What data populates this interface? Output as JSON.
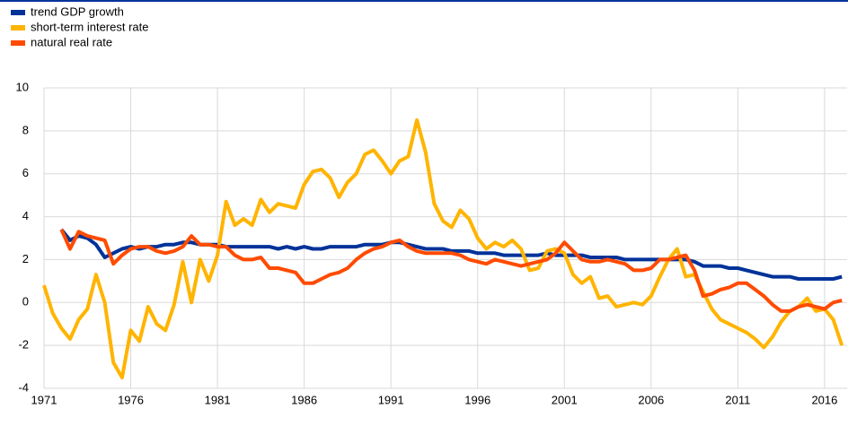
{
  "chart_data": {
    "type": "line",
    "x": [
      1971,
      1971.5,
      1972,
      1972.5,
      1973,
      1973.5,
      1974,
      1974.5,
      1975,
      1975.5,
      1976,
      1976.5,
      1977,
      1977.5,
      1978,
      1978.5,
      1979,
      1979.5,
      1980,
      1980.5,
      1981,
      1981.5,
      1982,
      1982.5,
      1983,
      1983.5,
      1984,
      1984.5,
      1985,
      1985.5,
      1986,
      1986.5,
      1987,
      1987.5,
      1988,
      1988.5,
      1989,
      1989.5,
      1990,
      1990.5,
      1991,
      1991.5,
      1992,
      1992.5,
      1993,
      1993.5,
      1994,
      1994.5,
      1995,
      1995.5,
      1996,
      1996.5,
      1997,
      1997.5,
      1998,
      1998.5,
      1999,
      1999.5,
      2000,
      2000.5,
      2001,
      2001.5,
      2002,
      2002.5,
      2003,
      2003.5,
      2004,
      2004.5,
      2005,
      2005.5,
      2006,
      2006.5,
      2007,
      2007.5,
      2008,
      2008.5,
      2009,
      2009.5,
      2010,
      2010.5,
      2011,
      2011.5,
      2012,
      2012.5,
      2013,
      2013.5,
      2014,
      2014.5,
      2015,
      2015.5,
      2016,
      2016.5,
      2017
    ],
    "series": [
      {
        "name": "trend GDP growth",
        "color": "#003299",
        "values": [
          null,
          null,
          3.4,
          2.9,
          3.1,
          3.0,
          2.7,
          2.1,
          2.3,
          2.5,
          2.6,
          2.5,
          2.6,
          2.6,
          2.7,
          2.7,
          2.8,
          2.8,
          2.7,
          2.7,
          2.7,
          2.6,
          2.6,
          2.6,
          2.6,
          2.6,
          2.6,
          2.5,
          2.6,
          2.5,
          2.6,
          2.5,
          2.5,
          2.6,
          2.6,
          2.6,
          2.6,
          2.7,
          2.7,
          2.7,
          2.8,
          2.8,
          2.7,
          2.6,
          2.5,
          2.5,
          2.5,
          2.4,
          2.4,
          2.4,
          2.3,
          2.3,
          2.3,
          2.2,
          2.2,
          2.2,
          2.2,
          2.2,
          2.3,
          2.2,
          2.2,
          2.2,
          2.2,
          2.1,
          2.1,
          2.1,
          2.1,
          2.0,
          2.0,
          2.0,
          2.0,
          2.0,
          2.0,
          2.0,
          2.0,
          1.9,
          1.7,
          1.7,
          1.7,
          1.6,
          1.6,
          1.5,
          1.4,
          1.3,
          1.2,
          1.2,
          1.2,
          1.1,
          1.1,
          1.1,
          1.1,
          1.1,
          1.2
        ]
      },
      {
        "name": "short-term interest rate",
        "color": "#ffb400",
        "values": [
          0.8,
          -0.5,
          -1.2,
          -1.7,
          -0.8,
          -0.3,
          1.3,
          0.0,
          -2.8,
          -3.5,
          -1.3,
          -1.8,
          -0.2,
          -1.0,
          -1.3,
          -0.1,
          1.9,
          0.0,
          2.0,
          1.0,
          2.2,
          4.7,
          3.6,
          3.9,
          3.6,
          4.8,
          4.2,
          4.6,
          4.5,
          4.4,
          5.5,
          6.1,
          6.2,
          5.8,
          4.9,
          5.6,
          6.0,
          6.9,
          7.1,
          6.6,
          6.0,
          6.6,
          6.8,
          8.5,
          7.0,
          4.6,
          3.8,
          3.5,
          4.3,
          3.9,
          3.0,
          2.5,
          2.8,
          2.6,
          2.9,
          2.5,
          1.5,
          1.6,
          2.4,
          2.5,
          2.3,
          1.3,
          0.9,
          1.2,
          0.2,
          0.3,
          -0.2,
          -0.1,
          0.0,
          -0.1,
          0.3,
          1.2,
          2.0,
          2.5,
          1.2,
          1.3,
          0.5,
          -0.3,
          -0.8,
          -1.0,
          -1.2,
          -1.4,
          -1.7,
          -2.1,
          -1.6,
          -0.9,
          -0.4,
          -0.2,
          0.2,
          -0.4,
          -0.3,
          -0.8,
          -2.0
        ]
      },
      {
        "name": "natural real rate",
        "color": "#ff4b00",
        "values": [
          null,
          null,
          3.4,
          2.5,
          3.3,
          3.1,
          3.0,
          2.9,
          1.8,
          2.2,
          2.5,
          2.6,
          2.6,
          2.4,
          2.3,
          2.4,
          2.6,
          3.1,
          2.7,
          2.7,
          2.6,
          2.6,
          2.2,
          2.0,
          2.0,
          2.1,
          1.6,
          1.6,
          1.5,
          1.4,
          0.9,
          0.9,
          1.1,
          1.3,
          1.4,
          1.6,
          2.0,
          2.3,
          2.5,
          2.6,
          2.8,
          2.9,
          2.6,
          2.4,
          2.3,
          2.3,
          2.3,
          2.3,
          2.2,
          2.0,
          1.9,
          1.8,
          2.0,
          1.9,
          1.8,
          1.7,
          1.8,
          1.9,
          2.0,
          2.3,
          2.8,
          2.4,
          2.0,
          1.9,
          1.9,
          2.0,
          1.9,
          1.8,
          1.5,
          1.5,
          1.6,
          2.0,
          2.0,
          2.1,
          2.2,
          1.5,
          0.3,
          0.4,
          0.6,
          0.7,
          0.9,
          0.9,
          0.6,
          0.3,
          -0.1,
          -0.4,
          -0.4,
          -0.2,
          -0.1,
          -0.2,
          -0.3,
          0.0,
          0.1
        ]
      }
    ],
    "xlim": [
      1971,
      2017.3
    ],
    "xticks": [
      1971,
      1976,
      1981,
      1986,
      1991,
      1996,
      2001,
      2006,
      2011,
      2016
    ],
    "ylim": [
      -4,
      10
    ],
    "yticks": [
      -4,
      -2,
      0,
      2,
      4,
      6,
      8,
      10
    ],
    "grid": true
  }
}
